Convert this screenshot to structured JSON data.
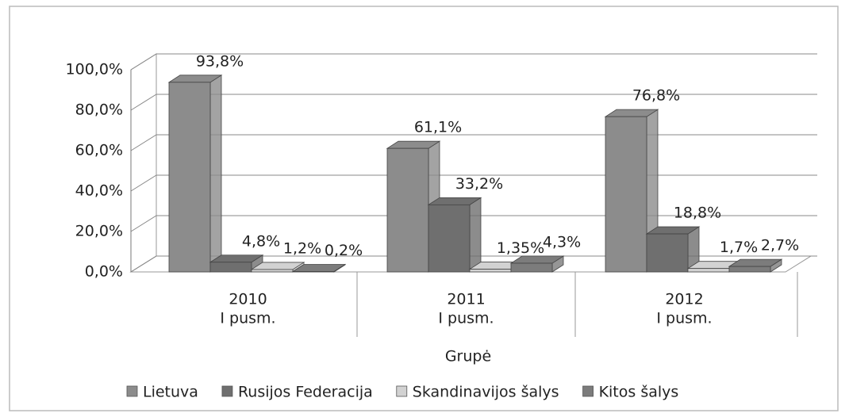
{
  "chart_data": {
    "type": "bar3d",
    "categories": [
      [
        "2010",
        "I pusm."
      ],
      [
        "2011",
        "I pusm."
      ],
      [
        "2012",
        "I pusm."
      ]
    ],
    "x_label": "Grupė",
    "series": [
      {
        "name": "Lietuva",
        "color": "#8c8c8c",
        "values": [
          93.8,
          61.1,
          76.8
        ],
        "value_labels": [
          "93,8%",
          "61,1%",
          "76,8%"
        ]
      },
      {
        "name": "Rusijos Federacija",
        "color": "#6f6f6f",
        "values": [
          4.8,
          33.2,
          18.8
        ],
        "value_labels": [
          "4,8%",
          "33,2%",
          "18,8%"
        ]
      },
      {
        "name": "Skandinavijos šalys",
        "color": "#d2d2d2",
        "values": [
          1.2,
          1.35,
          1.7
        ],
        "value_labels": [
          "1,2%",
          "1,35%",
          "1,7%"
        ]
      },
      {
        "name": "Kitos šalys",
        "color": "#7c7c7c",
        "values": [
          0.2,
          4.3,
          2.7
        ],
        "value_labels": [
          "0,2%",
          "4,3%",
          "2,7%"
        ]
      }
    ],
    "ylim": [
      0,
      100
    ],
    "yticks": [
      {
        "value": 0,
        "label": "0,0%"
      },
      {
        "value": 20,
        "label": "20,0%"
      },
      {
        "value": 40,
        "label": "40,0%"
      },
      {
        "value": 60,
        "label": "60,0%"
      },
      {
        "value": 80,
        "label": "80,0%"
      },
      {
        "value": 100,
        "label": "100,0%"
      }
    ],
    "grid": true,
    "legend": "bottom"
  }
}
